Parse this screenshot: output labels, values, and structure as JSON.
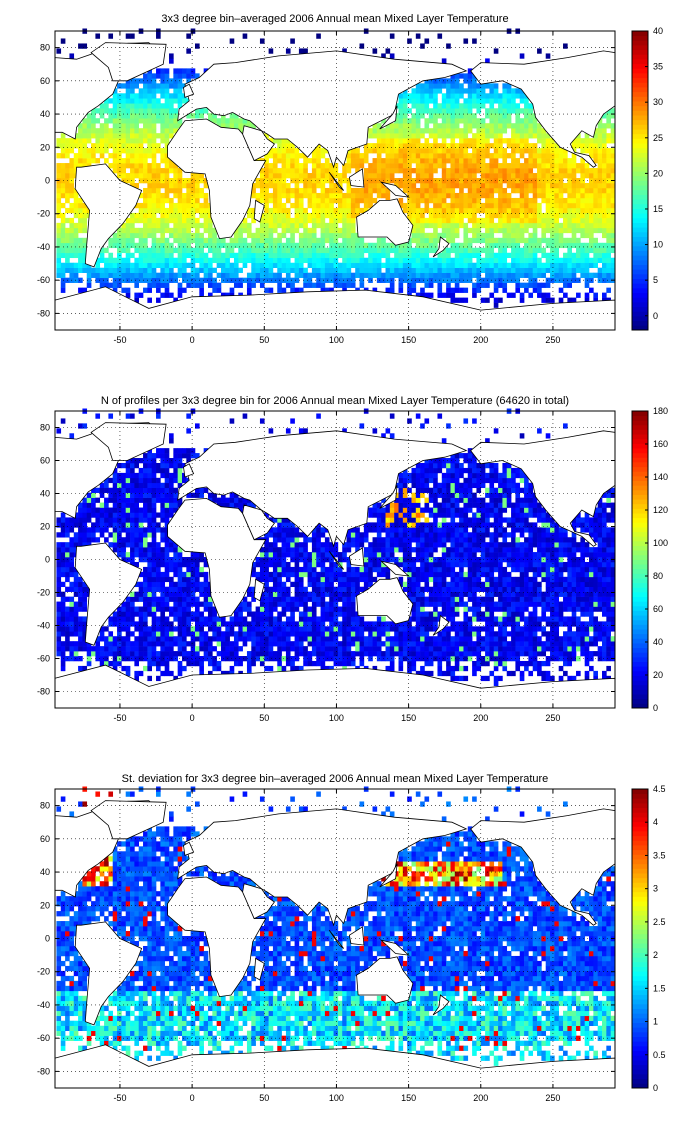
{
  "chart_data": [
    {
      "type": "heatmap",
      "title": "3x3 degree bin–averaged 2006 Annual mean Mixed Layer Temperature",
      "xlabel": "",
      "ylabel": "",
      "xlim": [
        -95,
        293
      ],
      "ylim": [
        -90,
        90
      ],
      "x_ticks": [
        -50,
        0,
        50,
        100,
        150,
        200,
        250
      ],
      "y_ticks": [
        -80,
        -60,
        -40,
        -20,
        0,
        20,
        40,
        60,
        80
      ],
      "grid": true,
      "colormap": "jet",
      "colorbar": {
        "min": -2,
        "max": 40,
        "ticks": [
          0,
          5,
          10,
          15,
          20,
          25,
          30,
          35,
          40
        ]
      },
      "field": "temperature"
    },
    {
      "type": "heatmap",
      "title": "N of profiles per 3x3 degree bin for 2006 Annual mean Mixed Layer Temperature  (64620 in total)",
      "xlabel": "",
      "ylabel": "",
      "xlim": [
        -95,
        293
      ],
      "ylim": [
        -90,
        90
      ],
      "x_ticks": [
        -50,
        0,
        50,
        100,
        150,
        200,
        250
      ],
      "y_ticks": [
        -80,
        -60,
        -40,
        -20,
        0,
        20,
        40,
        60,
        80
      ],
      "grid": true,
      "colormap": "jet",
      "colorbar": {
        "min": 0,
        "max": 180,
        "ticks": [
          0,
          20,
          40,
          60,
          80,
          100,
          120,
          140,
          160,
          180
        ]
      },
      "field": "count"
    },
    {
      "type": "heatmap",
      "title": "St. deviation for 3x3 degree bin–averaged 2006 Annual mean Mixed Layer Temperature",
      "xlabel": "",
      "ylabel": "",
      "xlim": [
        -95,
        293
      ],
      "ylim": [
        -90,
        90
      ],
      "x_ticks": [
        -50,
        0,
        50,
        100,
        150,
        200,
        250
      ],
      "y_ticks": [
        -80,
        -60,
        -40,
        -20,
        0,
        20,
        40,
        60,
        80
      ],
      "grid": true,
      "colormap": "jet",
      "colorbar": {
        "min": 0,
        "max": 4.5,
        "ticks": [
          0,
          0.5,
          1,
          1.5,
          2,
          2.5,
          3,
          3.5,
          4,
          4.5
        ]
      },
      "field": "stdev"
    }
  ]
}
